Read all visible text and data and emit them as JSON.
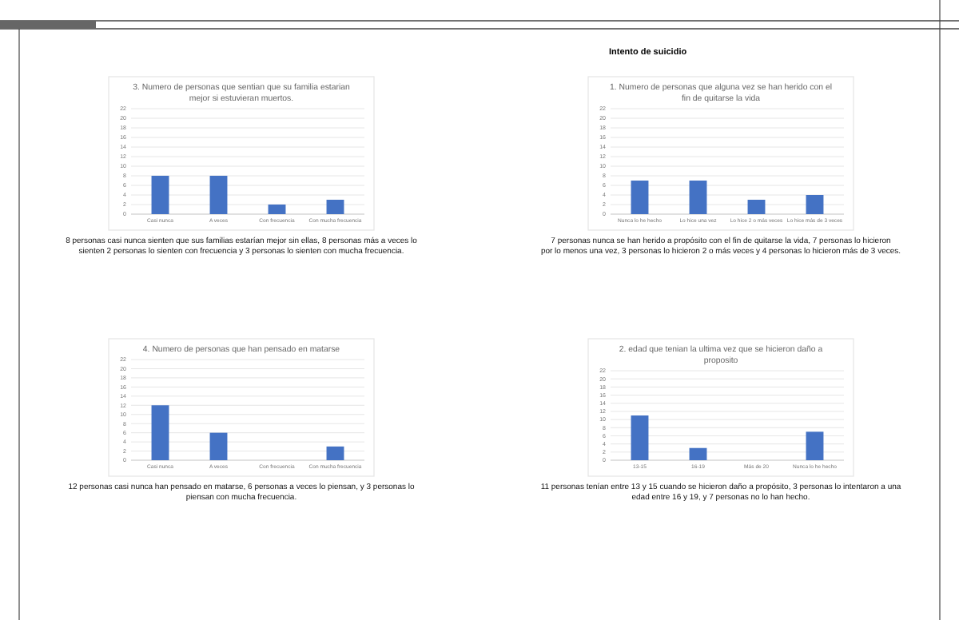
{
  "chart_data": [
    {
      "type": "bar",
      "title": "3. Numero de personas que sentian que su familia estarian mejor si estuvieran muertos.",
      "categories": [
        "Casi nunca",
        "A veces",
        "Con frecuencia",
        "Con mucha frecuencia"
      ],
      "values": [
        8,
        8,
        2,
        3
      ],
      "color": "#4472c4",
      "ylim": [
        0,
        22
      ],
      "yticks": [
        0,
        2,
        4,
        6,
        8,
        10,
        12,
        14,
        16,
        18,
        20,
        22
      ],
      "grid": "y",
      "annotations": [
        "8 personas casi nunca sienten que sus familias estarían mejor sin ellas, 8 personas más a veces lo sienten 2 personas lo sienten con frecuencia y 3 personas lo sienten con mucha frecuencia."
      ]
    },
    {
      "type": "bar",
      "title": "4. Numero de personas que han pensado en matarse",
      "categories": [
        "Casi nunca",
        "A veces",
        "Con frecuencia",
        "Con mucha frecuencia"
      ],
      "values": [
        12,
        6,
        0,
        3
      ],
      "color": "#4472c4",
      "ylim": [
        0,
        22
      ],
      "yticks": [
        0,
        2,
        4,
        6,
        8,
        10,
        12,
        14,
        16,
        18,
        20,
        22
      ],
      "grid": "y",
      "annotations": [
        "12 personas casi nunca han pensado en matarse, 6 personas a veces lo piensan, y 3 personas lo piensan con mucha frecuencia."
      ]
    },
    {
      "type": "bar",
      "title": "1. Numero de personas que alguna vez se han herido con el fin de quitarse la vida",
      "subtitle": "Intento de suicidio",
      "categories": [
        "Nunca lo he hecho",
        "Lo hice una vez",
        "Lo hice 2 o más veces",
        "Lo hice más de 3 veces"
      ],
      "values": [
        7,
        7,
        3,
        4
      ],
      "color": "#4472c4",
      "ylim": [
        0,
        22
      ],
      "yticks": [
        0,
        2,
        4,
        6,
        8,
        10,
        12,
        14,
        16,
        18,
        20,
        22
      ],
      "grid": "y",
      "annotations": [
        "7 personas nunca se han herido a propósito con el fin de quitarse la vida, 7 personas lo hicieron por lo menos una vez, 3 personas lo hicieron 2 o más veces y 4 personas lo hicieron más de 3 veces."
      ]
    },
    {
      "type": "bar",
      "title": "2. edad que tenian la ultima vez que se hicieron daño a proposito",
      "categories": [
        "13-15",
        "16-19",
        "Más de 20",
        "Nunca lo he hecho"
      ],
      "values": [
        11,
        3,
        0,
        7
      ],
      "color": "#4472c4",
      "ylim": [
        0,
        22
      ],
      "yticks": [
        0,
        2,
        4,
        6,
        8,
        10,
        12,
        14,
        16,
        18,
        20,
        22
      ],
      "grid": "y",
      "annotations": [
        "11 personas tenían entre 13 y 15 cuando se hicieron daño a propósito, 3 personas lo intentaron a una edad entre 16 y 19, y 7 personas no lo han hecho."
      ]
    }
  ]
}
